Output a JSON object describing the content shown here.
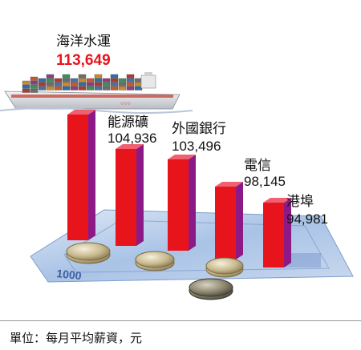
{
  "chart_data": {
    "type": "bar",
    "categories": [
      "海洋水運",
      "能源礦",
      "外國銀行",
      "電信",
      "港埠"
    ],
    "values": [
      113649,
      104936,
      103496,
      98145,
      94981
    ],
    "value_labels": [
      "113,649",
      "104,936",
      "103,496",
      "98,145",
      "94,981"
    ],
    "highlight_index": 0,
    "unit_note": "單位：每月平均薪資，元",
    "colors": {
      "bar_front": "#e8141c",
      "bar_side": "#8c1a86",
      "bar_top": "#f06070",
      "highlight_text": "#e8141c"
    }
  },
  "decorations": {
    "ship_icon": "container-ship",
    "banknote_icon": "banknote",
    "banknote_text": "1000",
    "coin_icon": "coin"
  }
}
